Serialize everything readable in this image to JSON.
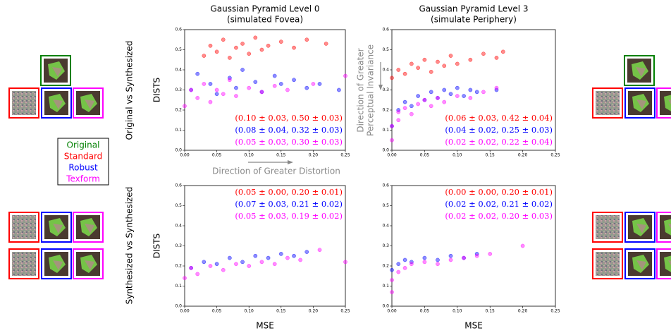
{
  "chart_data": [
    {
      "type": "scatter",
      "title": "Gaussian Pyramid Level 0",
      "subtitle": "(simulated Fovea)",
      "ylabel": "DISTS",
      "xlim": [
        0,
        0.25
      ],
      "ylim": [
        0,
        0.6
      ],
      "xticks": [
        {
          "value": 0,
          "label": "0.00"
        },
        0.05,
        {
          "value": 0.1,
          "label": "0.10"
        },
        0.15,
        {
          "value": 0.2,
          "label": "0.20"
        },
        0.25
      ],
      "yticks": [
        {
          "value": 0,
          "label": "0.0"
        },
        0.1,
        0.2,
        0.3,
        0.4,
        0.5,
        0.6
      ],
      "series": [
        {
          "name": "Standard",
          "color": "#ff0000",
          "x": [
            0.03,
            0.04,
            0.05,
            0.06,
            0.07,
            0.08,
            0.09,
            0.1,
            0.11,
            0.12,
            0.13,
            0.15,
            0.17,
            0.19,
            0.22
          ],
          "values": [
            0.47,
            0.52,
            0.49,
            0.55,
            0.46,
            0.51,
            0.53,
            0.48,
            0.56,
            0.5,
            0.52,
            0.54,
            0.51,
            0.55,
            0.53
          ]
        },
        {
          "name": "Robust",
          "color": "#0000ff",
          "x": [
            0.01,
            0.02,
            0.04,
            0.05,
            0.07,
            0.08,
            0.09,
            0.11,
            0.12,
            0.14,
            0.15,
            0.17,
            0.19,
            0.21,
            0.24
          ],
          "values": [
            0.3,
            0.38,
            0.33,
            0.28,
            0.36,
            0.31,
            0.4,
            0.34,
            0.29,
            0.37,
            0.33,
            0.35,
            0.31,
            0.33,
            0.3
          ]
        },
        {
          "name": "Texform",
          "color": "#ff00ff",
          "x": [
            0.0,
            0.01,
            0.02,
            0.03,
            0.04,
            0.05,
            0.06,
            0.07,
            0.08,
            0.1,
            0.12,
            0.14,
            0.16,
            0.2,
            0.25
          ],
          "values": [
            0.22,
            0.3,
            0.26,
            0.33,
            0.24,
            0.3,
            0.28,
            0.35,
            0.27,
            0.31,
            0.29,
            0.32,
            0.3,
            0.33,
            0.37
          ]
        }
      ],
      "annotations": [
        {
          "text": "(0.10 ± 0.03, 0.50 ± 0.03)",
          "color": "#ff0000"
        },
        {
          "text": "(0.08 ± 0.04, 0.32 ± 0.03)",
          "color": "#0000ff"
        },
        {
          "text": "(0.05 ± 0.03, 0.30 ± 0.03)",
          "color": "#ff00ff"
        }
      ]
    },
    {
      "type": "scatter",
      "title": "Gaussian Pyramid Level 3",
      "subtitle": "(simulate Periphery)",
      "xlim": [
        0,
        0.25
      ],
      "ylim": [
        0,
        0.6
      ],
      "xticks": [
        {
          "value": 0,
          "label": "0.00"
        },
        0.05,
        {
          "value": 0.1,
          "label": "0.10"
        },
        0.15,
        {
          "value": 0.2,
          "label": "0.20"
        },
        0.25
      ],
      "yticks": [
        {
          "value": 0,
          "label": "0.0"
        },
        0.1,
        0.2,
        0.3,
        0.4,
        0.5,
        0.6
      ],
      "series": [
        {
          "name": "Standard",
          "color": "#ff0000",
          "x": [
            0.0,
            0.01,
            0.02,
            0.03,
            0.04,
            0.05,
            0.06,
            0.07,
            0.08,
            0.09,
            0.1,
            0.12,
            0.14,
            0.16,
            0.17
          ],
          "values": [
            0.36,
            0.4,
            0.38,
            0.43,
            0.41,
            0.45,
            0.39,
            0.44,
            0.42,
            0.47,
            0.43,
            0.45,
            0.48,
            0.46,
            0.49
          ]
        },
        {
          "name": "Robust",
          "color": "#0000ff",
          "x": [
            0.0,
            0.01,
            0.02,
            0.03,
            0.04,
            0.05,
            0.06,
            0.07,
            0.08,
            0.09,
            0.1,
            0.11,
            0.12,
            0.13,
            0.16
          ],
          "values": [
            0.12,
            0.2,
            0.24,
            0.22,
            0.27,
            0.25,
            0.29,
            0.26,
            0.3,
            0.28,
            0.31,
            0.27,
            0.3,
            0.29,
            0.3
          ]
        },
        {
          "name": "Texform",
          "color": "#ff00ff",
          "x": [
            0.0,
            0.0,
            0.01,
            0.01,
            0.02,
            0.03,
            0.04,
            0.05,
            0.06,
            0.07,
            0.08,
            0.1,
            0.12,
            0.14,
            0.16
          ],
          "values": [
            0.05,
            0.12,
            0.15,
            0.19,
            0.21,
            0.18,
            0.23,
            0.25,
            0.22,
            0.26,
            0.24,
            0.27,
            0.26,
            0.29,
            0.31
          ]
        }
      ],
      "annotations": [
        {
          "text": "(0.06 ± 0.03, 0.42 ± 0.04)",
          "color": "#ff0000"
        },
        {
          "text": "(0.04 ± 0.02, 0.25 ± 0.03)",
          "color": "#0000ff"
        },
        {
          "text": "(0.02 ± 0.02, 0.22 ± 0.04)",
          "color": "#ff00ff"
        }
      ]
    },
    {
      "type": "scatter",
      "ylabel": "DISTS",
      "xlabel": "MSE",
      "xlim": [
        0,
        0.25
      ],
      "ylim": [
        0,
        0.6
      ],
      "xticks": [
        {
          "value": 0,
          "label": "0.00"
        },
        0.05,
        {
          "value": 0.1,
          "label": "0.10"
        },
        0.15,
        {
          "value": 0.2,
          "label": "0.20"
        },
        0.25
      ],
      "yticks": [
        {
          "value": 0,
          "label": "0.0"
        },
        0.1,
        0.2,
        0.3,
        0.4,
        0.5,
        0.6
      ],
      "series": [
        {
          "name": "Robust",
          "color": "#0000ff",
          "x": [
            0.01,
            0.03,
            0.05,
            0.07,
            0.09,
            0.11,
            0.13,
            0.15,
            0.17,
            0.19
          ],
          "values": [
            0.19,
            0.22,
            0.21,
            0.24,
            0.22,
            0.25,
            0.24,
            0.26,
            0.25,
            0.27
          ]
        },
        {
          "name": "Texform",
          "color": "#ff00ff",
          "x": [
            0.0,
            0.01,
            0.02,
            0.04,
            0.06,
            0.08,
            0.1,
            0.12,
            0.14,
            0.16,
            0.18,
            0.21,
            0.25
          ],
          "values": [
            0.14,
            0.19,
            0.16,
            0.2,
            0.18,
            0.21,
            0.2,
            0.22,
            0.21,
            0.24,
            0.23,
            0.28,
            0.22
          ]
        }
      ],
      "annotations": [
        {
          "text": "(0.05 ± 0.00, 0.20 ± 0.01)",
          "color": "#ff0000"
        },
        {
          "text": "(0.07 ± 0.03, 0.21 ± 0.02)",
          "color": "#0000ff"
        },
        {
          "text": "(0.05 ± 0.03, 0.19 ± 0.02)",
          "color": "#ff00ff"
        }
      ]
    },
    {
      "type": "scatter",
      "xlabel": "MSE",
      "xlim": [
        0,
        0.25
      ],
      "ylim": [
        0,
        0.6
      ],
      "xticks": [
        {
          "value": 0,
          "label": "0.00"
        },
        0.05,
        {
          "value": 0.1,
          "label": "0.10"
        },
        0.15,
        {
          "value": 0.2,
          "label": "0.20"
        },
        0.25
      ],
      "yticks": [
        {
          "value": 0,
          "label": "0.0"
        },
        0.1,
        0.2,
        0.3,
        0.4,
        0.5,
        0.6
      ],
      "series": [
        {
          "name": "Robust",
          "color": "#0000ff",
          "x": [
            0.0,
            0.01,
            0.02,
            0.03,
            0.05,
            0.07,
            0.09,
            0.11,
            0.13
          ],
          "values": [
            0.18,
            0.21,
            0.23,
            0.22,
            0.24,
            0.23,
            0.25,
            0.24,
            0.26
          ]
        },
        {
          "name": "Texform",
          "color": "#ff00ff",
          "x": [
            0.0,
            0.0,
            0.01,
            0.02,
            0.03,
            0.05,
            0.07,
            0.09,
            0.11,
            0.13,
            0.15,
            0.2
          ],
          "values": [
            0.07,
            0.13,
            0.17,
            0.19,
            0.21,
            0.22,
            0.21,
            0.23,
            0.24,
            0.25,
            0.26,
            0.3
          ]
        }
      ],
      "annotations": [
        {
          "text": "(0.00 ± 0.00, 0.20 ± 0.01)",
          "color": "#ff0000"
        },
        {
          "text": "(0.02 ± 0.02, 0.21 ± 0.02)",
          "color": "#0000ff"
        },
        {
          "text": "(0.02 ± 0.02, 0.20 ± 0.03)",
          "color": "#ff00ff"
        }
      ]
    }
  ],
  "rows": [
    "Original vs Synthesized",
    "Synthesized vs Synthesized"
  ],
  "legend": {
    "original": "Original",
    "original_color": "#008000"
  },
  "arrows": {
    "distortion": "Direction of Greater Distortion",
    "invariance": [
      "Direction of Greater",
      "Perceptual Invariance"
    ]
  }
}
